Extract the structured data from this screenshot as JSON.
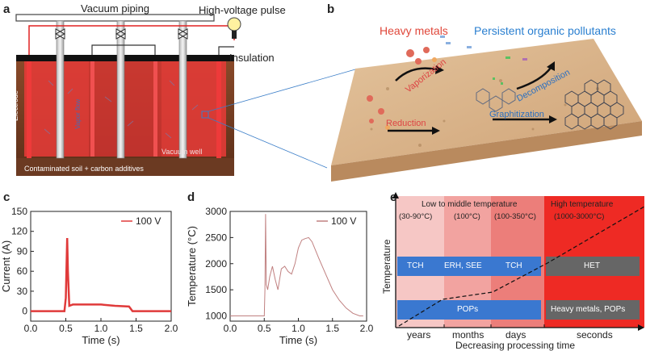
{
  "panel_a": {
    "letter": "a",
    "vacuum_piping": "Vacuum piping",
    "hv_pulse": "High-voltage pulse",
    "insulation": "Insulation",
    "electrode": "Electrode",
    "vapor_flow": "Vapor flow",
    "vacuum_well": "Vacuum well",
    "soil_caption": "Contaminated soil + carbon additives",
    "colors": {
      "soil": "#7a3e22",
      "heating": "#d9302a",
      "insulation": "#111111"
    }
  },
  "panel_b": {
    "letter": "b",
    "heavy_metals": "Heavy metals",
    "pops": "Persistent organic pollutants",
    "vaporization": "Vaporization",
    "decomposition": "Decomposition",
    "graphitization": "Graphitization",
    "reduction": "Reduction",
    "colors": {
      "heavy_metals": "#e0473a",
      "pops": "#2a7fd0",
      "sand": "#d8b48a"
    }
  },
  "chart_data": [
    {
      "panel": "c",
      "type": "line",
      "xlabel": "Time (s)",
      "ylabel": "Current (A)",
      "xlim": [
        0,
        2.0
      ],
      "ylim": [
        -15,
        150
      ],
      "xticks": [
        "0.0",
        "0.5",
        "1.0",
        "1.5",
        "2.0"
      ],
      "yticks": [
        "0",
        "30",
        "60",
        "90",
        "120",
        "150"
      ],
      "legend": "100 V",
      "legend_position": "top-right",
      "color": "#e03a3a",
      "series": [
        {
          "name": "100 V",
          "x": [
            0,
            0.48,
            0.5,
            0.52,
            0.53,
            0.55,
            0.6,
            0.8,
            1.0,
            1.2,
            1.4,
            1.45,
            1.5,
            1.8,
            2.0
          ],
          "y": [
            0,
            0,
            20,
            110,
            60,
            8,
            10,
            10,
            10,
            8,
            7,
            0,
            0,
            0,
            0
          ]
        }
      ]
    },
    {
      "panel": "d",
      "type": "line",
      "xlabel": "Time (s)",
      "ylabel": "Temperature (°C)",
      "xlim": [
        0,
        2.0
      ],
      "ylim": [
        900,
        3000
      ],
      "xticks": [
        "0.0",
        "0.5",
        "1.0",
        "1.5",
        "2.0"
      ],
      "yticks": [
        "1000",
        "1500",
        "2000",
        "2500",
        "3000"
      ],
      "legend": "100 V",
      "legend_position": "top-right",
      "color": "#c08080",
      "series": [
        {
          "name": "100 V",
          "x": [
            0,
            0.5,
            0.51,
            0.52,
            0.53,
            0.55,
            0.58,
            0.62,
            0.66,
            0.7,
            0.75,
            0.8,
            0.85,
            0.9,
            0.95,
            1.0,
            1.05,
            1.1,
            1.15,
            1.2,
            1.3,
            1.4,
            1.5,
            1.6,
            1.7,
            1.8,
            1.9,
            1.95
          ],
          "y": [
            1000,
            1000,
            1500,
            2950,
            1600,
            1500,
            1750,
            1950,
            1700,
            1500,
            1900,
            1950,
            1850,
            1800,
            2000,
            2300,
            2450,
            2480,
            2500,
            2420,
            2100,
            1800,
            1500,
            1300,
            1150,
            1050,
            1000,
            1000
          ]
        }
      ]
    },
    {
      "panel": "e",
      "type": "table",
      "ylabel": "Temperature",
      "xlabel": "Decreasing processing time",
      "header_low": "Low to middle temperature",
      "header_high": "High temperature",
      "ranges": [
        "(30-90°C)",
        "(100°C)",
        "(100-350°C)",
        "(1000-3000°C)"
      ],
      "methods": [
        "TCH",
        "ERH, SEE",
        "TCH",
        "HET"
      ],
      "pops_label": "POPs",
      "high_label": "Heavy metals, POPs",
      "time_labels": [
        "years",
        "months",
        "days",
        "seconds"
      ],
      "colors": [
        "#f6c7c5",
        "#f2a3a0",
        "#ec7e7a",
        "#ee2a24"
      ]
    }
  ],
  "letters": {
    "c": "c",
    "d": "d",
    "e": "e"
  }
}
